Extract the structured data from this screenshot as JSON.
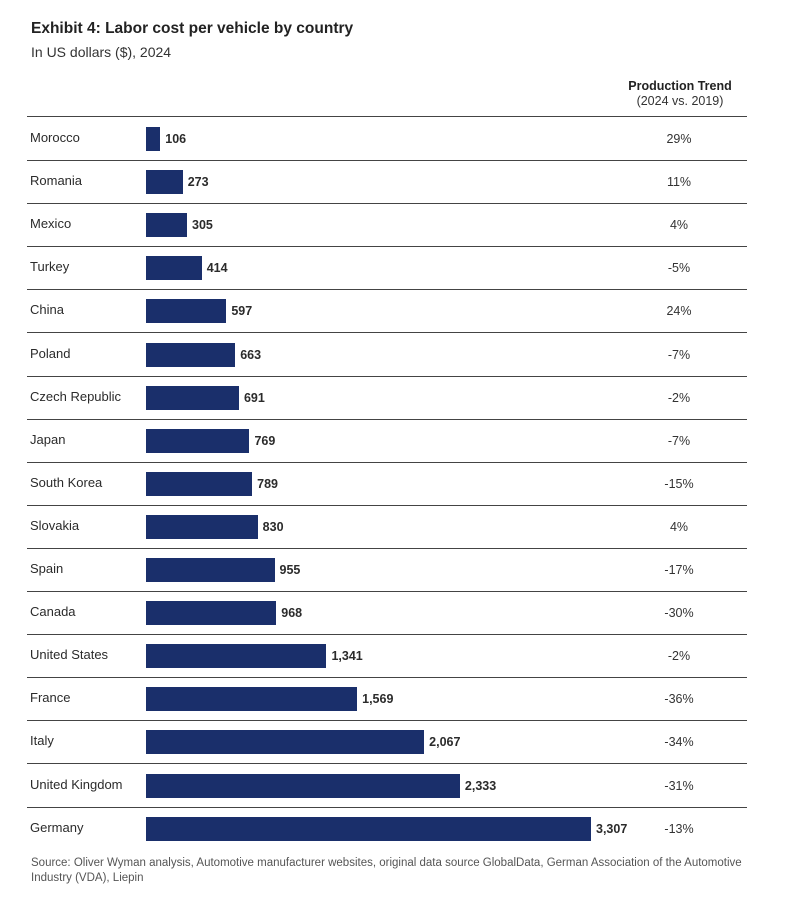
{
  "header": {
    "title": "Exhibit 4: Labor cost per vehicle by country",
    "subtitle": "In US dollars ($), 2024",
    "trend_title": "Production Trend",
    "trend_subtitle": "(2024 vs. 2019)"
  },
  "chart_data": {
    "type": "bar",
    "orientation": "horizontal",
    "title": "Exhibit 4: Labor cost per vehicle by country",
    "subtitle": "In US dollars ($), 2024",
    "categories": [
      "Morocco",
      "Romania",
      "Mexico",
      "Turkey",
      "China",
      "Poland",
      "Czech Republic",
      "Japan",
      "South Korea",
      "Slovakia",
      "Spain",
      "Canada",
      "United States",
      "France",
      "Italy",
      "United Kingdom",
      "Germany"
    ],
    "values": [
      106,
      273,
      305,
      414,
      597,
      663,
      691,
      769,
      789,
      830,
      955,
      968,
      1341,
      1569,
      2067,
      2333,
      3307
    ],
    "value_labels": [
      "106",
      "273",
      "305",
      "414",
      "597",
      "663",
      "691",
      "769",
      "789",
      "830",
      "955",
      "968",
      "1,341",
      "1,569",
      "2,067",
      "2,333",
      "3,307"
    ],
    "production_trend": [
      "29%",
      "11%",
      "4%",
      "-5%",
      "24%",
      "-7%",
      "-2%",
      "-7%",
      "-15%",
      "4%",
      "-17%",
      "-30%",
      "-2%",
      "-36%",
      "-34%",
      "-31%",
      "-13%"
    ],
    "bar_color": "#1a2f6b",
    "xlim": [
      0,
      3307
    ],
    "grid": false,
    "legend": "none"
  },
  "footer": {
    "source": "Source: Oliver Wyman analysis, Automotive manufacturer websites, original data source GlobalData, German Association of the Automotive Industry (VDA), Liepin"
  }
}
